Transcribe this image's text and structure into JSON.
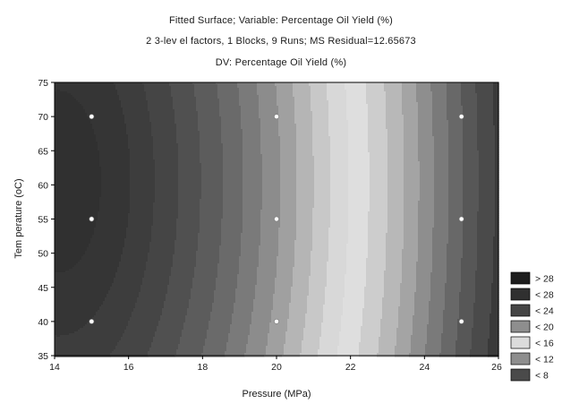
{
  "chart_data": {
    "type": "contour",
    "title": "Fitted Surface; Variable: Percentage Oil Yield (%)",
    "subtitle": "2 3-lev el factors, 1 Blocks, 9 Runs; MS Residual=12.65673",
    "dv_label": "DV: Percentage Oil Yield (%)",
    "xlabel": "Pressure (MPa)",
    "ylabel": "Tem perature (oC)",
    "xlim": [
      14,
      26
    ],
    "ylim": [
      35,
      75
    ],
    "x_ticks": [
      "14",
      "16",
      "18",
      "20",
      "22",
      "24",
      "26"
    ],
    "y_ticks": [
      "35",
      "40",
      "45",
      "50",
      "55",
      "60",
      "65",
      "70",
      "75"
    ],
    "x_tick_values": [
      14,
      16,
      18,
      20,
      22,
      24,
      26
    ],
    "y_tick_values": [
      35,
      40,
      45,
      50,
      55,
      60,
      65,
      70,
      75
    ],
    "design_points": [
      {
        "x": 15,
        "y": 40
      },
      {
        "x": 15,
        "y": 55
      },
      {
        "x": 15,
        "y": 70
      },
      {
        "x": 20,
        "y": 40
      },
      {
        "x": 20,
        "y": 55
      },
      {
        "x": 20,
        "y": 70
      },
      {
        "x": 25,
        "y": 40
      },
      {
        "x": 25,
        "y": 55
      },
      {
        "x": 25,
        "y": 70
      }
    ],
    "legend": [
      {
        "label": "> 28",
        "color": "#1e1e1e"
      },
      {
        "label": "< 28",
        "color": "#303030"
      },
      {
        "label": "< 24",
        "color": "#454545"
      },
      {
        "label": "< 20",
        "color": "#8e8e8e"
      },
      {
        "label": "< 16",
        "color": "#dcdcdc"
      },
      {
        "label": "< 12",
        "color": "#8e8e8e"
      },
      {
        "label": "< 8",
        "color": "#4a4a4a"
      }
    ],
    "legend_placement": "right-bottom",
    "grid": false
  }
}
